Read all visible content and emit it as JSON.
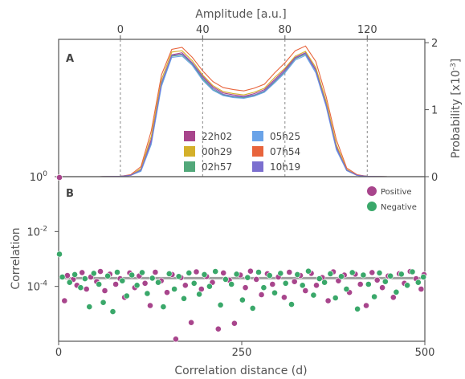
{
  "chart_data": [
    {
      "panel_label": "A",
      "type": "line",
      "xlabel": "Amplitude [a.u.]",
      "ylabel": "Probability [x10",
      "ylabel_exponent": "-3",
      "ylabel_end": "]",
      "x_ticks": [
        "0",
        "40",
        "80",
        "120"
      ],
      "x_tick_values": [
        0,
        40,
        80,
        120
      ],
      "y_ticks": [
        "0",
        "1",
        "2"
      ],
      "y_tick_values": [
        0,
        1,
        2
      ],
      "xlim": [
        -30,
        148
      ],
      "ylim": [
        0,
        2.05
      ],
      "dashed_vertical_lines_at": [
        0,
        40,
        80,
        120
      ],
      "x": [
        -30,
        -20,
        -10,
        0,
        5,
        10,
        15,
        20,
        25,
        30,
        35,
        40,
        45,
        50,
        55,
        60,
        65,
        70,
        75,
        80,
        85,
        90,
        95,
        100,
        105,
        110,
        115,
        120,
        130,
        148
      ],
      "series": [
        {
          "name": "22h02",
          "color": "#a8458c",
          "values": [
            0,
            0,
            0,
            0.005,
            0.02,
            0.1,
            0.55,
            1.4,
            1.82,
            1.85,
            1.7,
            1.5,
            1.34,
            1.25,
            1.22,
            1.2,
            1.24,
            1.3,
            1.45,
            1.6,
            1.78,
            1.85,
            1.6,
            1.1,
            0.45,
            0.1,
            0.02,
            0.005,
            0,
            0
          ]
        },
        {
          "name": "00h29",
          "color": "#d4b02a",
          "values": [
            0,
            0,
            0,
            0.005,
            0.02,
            0.12,
            0.6,
            1.45,
            1.86,
            1.88,
            1.73,
            1.52,
            1.36,
            1.27,
            1.24,
            1.22,
            1.26,
            1.32,
            1.48,
            1.62,
            1.8,
            1.87,
            1.63,
            1.13,
            0.48,
            0.11,
            0.02,
            0.005,
            0,
            0
          ]
        },
        {
          "name": "02h57",
          "color": "#52a87a",
          "values": [
            0,
            0,
            0,
            0.005,
            0.02,
            0.09,
            0.5,
            1.38,
            1.8,
            1.82,
            1.68,
            1.46,
            1.3,
            1.22,
            1.19,
            1.18,
            1.21,
            1.27,
            1.42,
            1.57,
            1.76,
            1.83,
            1.58,
            1.08,
            0.42,
            0.09,
            0.02,
            0.005,
            0,
            0
          ]
        },
        {
          "name": "05h25",
          "color": "#6aa3e8",
          "values": [
            0,
            0,
            0,
            0.005,
            0.02,
            0.08,
            0.48,
            1.35,
            1.78,
            1.8,
            1.66,
            1.44,
            1.29,
            1.21,
            1.18,
            1.17,
            1.2,
            1.26,
            1.4,
            1.55,
            1.74,
            1.81,
            1.55,
            1.05,
            0.4,
            0.09,
            0.02,
            0.005,
            0,
            0
          ]
        },
        {
          "name": "07h54",
          "color": "#e8643c",
          "values": [
            0,
            0,
            0,
            0.006,
            0.03,
            0.15,
            0.68,
            1.52,
            1.9,
            1.93,
            1.78,
            1.58,
            1.42,
            1.33,
            1.3,
            1.28,
            1.32,
            1.38,
            1.55,
            1.7,
            1.88,
            1.95,
            1.72,
            1.2,
            0.55,
            0.13,
            0.03,
            0.006,
            0,
            0
          ]
        },
        {
          "name": "10h19",
          "color": "#7b6fcf",
          "values": [
            0,
            0,
            0,
            0.005,
            0.02,
            0.1,
            0.52,
            1.4,
            1.81,
            1.83,
            1.69,
            1.48,
            1.32,
            1.23,
            1.2,
            1.19,
            1.22,
            1.28,
            1.43,
            1.58,
            1.77,
            1.84,
            1.58,
            1.08,
            0.43,
            0.1,
            0.02,
            0.005,
            0,
            0
          ]
        }
      ],
      "legend_placement": "bottom-center",
      "grid": false
    },
    {
      "panel_label": "B",
      "type": "scatter",
      "xlabel": "Correlation distance (d)",
      "ylabel": "Correlation",
      "y_scale": "log",
      "x_ticks": [
        "0",
        "250",
        "500"
      ],
      "x_tick_values": [
        0,
        250,
        500
      ],
      "y_ticks": [
        {
          "base": "10",
          "exp": "0",
          "value": 1
        },
        {
          "base": "10",
          "exp": "-2",
          "value": 0.01
        },
        {
          "base": "10",
          "exp": "-4",
          "value": 0.0001
        }
      ],
      "xlim": [
        0,
        500
      ],
      "ylim": [
        1e-06,
        1
      ],
      "trend_line_value": 0.0002,
      "trend_line_color": "#a0a0a0",
      "series": [
        {
          "name": "Positive",
          "color": "#a8458c",
          "points": [
            [
              0,
              1
            ],
            [
              8,
              3e-05
            ],
            [
              12,
              0.00025
            ],
            [
              20,
              0.00018
            ],
            [
              25,
              0.00011
            ],
            [
              32,
              0.00032
            ],
            [
              38,
              8e-05
            ],
            [
              44,
              0.00022
            ],
            [
              52,
              0.00015
            ],
            [
              57,
              0.00035
            ],
            [
              63,
              7e-05
            ],
            [
              70,
              0.00028
            ],
            [
              78,
              0.00012
            ],
            [
              84,
              0.00019
            ],
            [
              90,
              4e-05
            ],
            [
              97,
              0.00031
            ],
            [
              104,
              9e-05
            ],
            [
              110,
              0.00024
            ],
            [
              118,
              0.00013
            ],
            [
              125,
              2e-05
            ],
            [
              132,
              0.00033
            ],
            [
              140,
              0.00016
            ],
            [
              148,
              6e-05
            ],
            [
              155,
              0.00027
            ],
            [
              160,
              1.2e-06
            ],
            [
              167,
              0.00021
            ],
            [
              173,
              0.00011
            ],
            [
              181,
              4.8e-06
            ],
            [
              188,
              0.00034
            ],
            [
              195,
              8e-05
            ],
            [
              202,
              0.00023
            ],
            [
              210,
              0.00014
            ],
            [
              218,
              2.8e-06
            ],
            [
              225,
              0.00031
            ],
            [
              233,
              0.00017
            ],
            [
              240,
              4.5e-06
            ],
            [
              248,
              0.00026
            ],
            [
              255,
              9e-05
            ],
            [
              262,
              0.00036
            ],
            [
              270,
              0.00018
            ],
            [
              277,
              5e-05
            ],
            [
              285,
              0.00029
            ],
            [
              292,
              0.00012
            ],
            [
              300,
              0.00022
            ],
            [
              308,
              4e-05
            ],
            [
              315,
              0.00033
            ],
            [
              322,
              0.00015
            ],
            [
              330,
              0.00025
            ],
            [
              337,
              7e-05
            ],
            [
              345,
              0.0003
            ],
            [
              352,
              0.00011
            ],
            [
              360,
              0.00021
            ],
            [
              368,
              3e-05
            ],
            [
              375,
              0.00034
            ],
            [
              382,
              0.00016
            ],
            [
              390,
              0.00026
            ],
            [
              397,
              6e-05
            ],
            [
              405,
              0.00028
            ],
            [
              412,
              0.00012
            ],
            [
              420,
              2e-05
            ],
            [
              428,
              0.00032
            ],
            [
              435,
              0.00017
            ],
            [
              442,
              9e-05
            ],
            [
              450,
              0.00024
            ],
            [
              457,
              4e-05
            ],
            [
              465,
              0.00029
            ],
            [
              472,
              0.00013
            ],
            [
              480,
              0.00035
            ],
            [
              488,
              0.00019
            ],
            [
              495,
              8e-05
            ],
            [
              500,
              0.00027
            ]
          ]
        },
        {
          "name": "Negative",
          "color": "#3aa86a",
          "points": [
            [
              0,
              0.0015
            ],
            [
              5,
              0.00022
            ],
            [
              15,
              0.00014
            ],
            [
              22,
              0.00027
            ],
            [
              30,
              9e-05
            ],
            [
              36,
              0.00019
            ],
            [
              42,
              1.8e-05
            ],
            [
              48,
              0.0003
            ],
            [
              55,
              0.00012
            ],
            [
              61,
              2.6e-05
            ],
            [
              67,
              0.00024
            ],
            [
              74,
              1.2e-05
            ],
            [
              80,
              0.00033
            ],
            [
              87,
              0.00016
            ],
            [
              93,
              4.5e-05
            ],
            [
              100,
              0.00026
            ],
            [
              107,
              0.00011
            ],
            [
              114,
              0.00032
            ],
            [
              121,
              5.5e-05
            ],
            [
              128,
              0.0002
            ],
            [
              136,
              0.00014
            ],
            [
              143,
              1.8e-05
            ],
            [
              151,
              0.00029
            ],
            [
              158,
              8e-05
            ],
            [
              164,
              0.00023
            ],
            [
              171,
              3.6e-05
            ],
            [
              178,
              0.00031
            ],
            [
              185,
              0.00013
            ],
            [
              192,
              5.2e-05
            ],
            [
              199,
              0.00027
            ],
            [
              206,
              0.0001
            ],
            [
              214,
              0.00035
            ],
            [
              221,
              2.1e-05
            ],
            [
              228,
              0.00018
            ],
            [
              236,
              0.00012
            ],
            [
              243,
              0.00028
            ],
            [
              251,
              3.2e-05
            ],
            [
              258,
              0.00021
            ],
            [
              265,
              1.6e-05
            ],
            [
              273,
              0.00033
            ],
            [
              280,
              9e-05
            ],
            [
              288,
              0.00025
            ],
            [
              295,
              5.8e-05
            ],
            [
              303,
              0.0003
            ],
            [
              310,
              0.00013
            ],
            [
              318,
              2.2e-05
            ],
            [
              326,
              0.00027
            ],
            [
              333,
              0.00011
            ],
            [
              341,
              0.00036
            ],
            [
              348,
              4.8e-05
            ],
            [
              356,
              0.00019
            ],
            [
              363,
              0.00014
            ],
            [
              371,
              0.00029
            ],
            [
              378,
              3.8e-05
            ],
            [
              386,
              0.00023
            ],
            [
              393,
              8e-05
            ],
            [
              401,
              0.00032
            ],
            [
              408,
              1.5e-05
            ],
            [
              416,
              0.00026
            ],
            [
              423,
              0.00012
            ],
            [
              431,
              4.2e-05
            ],
            [
              438,
              0.00031
            ],
            [
              446,
              0.00015
            ],
            [
              453,
              0.00024
            ],
            [
              461,
              6.2e-05
            ],
            [
              468,
              0.00028
            ],
            [
              476,
              0.00011
            ],
            [
              483,
              0.00034
            ],
            [
              491,
              0.00014
            ],
            [
              498,
              0.00022
            ]
          ]
        }
      ],
      "legend_placement": "top-right",
      "grid": false
    }
  ]
}
